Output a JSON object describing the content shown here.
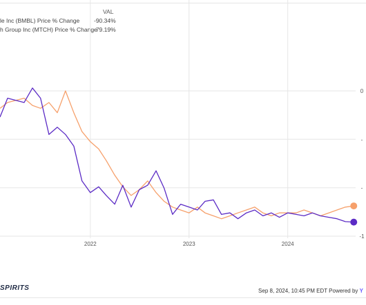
{
  "legend": {
    "header": "VAL",
    "rows": [
      {
        "name": "le Inc (BMBL) Price % Change",
        "value": "-90.34%",
        "color": "#5b2bc5"
      },
      {
        "name": "h Group Inc (MTCH) Price % Change",
        "value": "-79.19%",
        "color": "#f6a06b"
      }
    ]
  },
  "footer": {
    "brand": "SPIRITS",
    "timestamp": "Sep 8, 2024, 10:45 PM EDT Powered by",
    "powered_by_mark": "Y"
  },
  "chart_data": {
    "type": "line",
    "x_ticks": [
      "2022",
      "2023",
      "2024"
    ],
    "y_ticks": [
      "0",
      "-",
      "-",
      "-1"
    ],
    "grid": true,
    "series": [
      {
        "name": "le Inc (BMBL) Price % Change",
        "color": "#5b2bc5",
        "x": [
          "2021-02",
          "2021-03",
          "2021-05",
          "2021-06",
          "2021-07",
          "2021-08",
          "2021-09",
          "2021-10",
          "2021-11",
          "2021-12",
          "2022-01",
          "2022-02",
          "2022-03",
          "2022-04",
          "2022-05",
          "2022-06",
          "2022-07",
          "2022-08",
          "2022-09",
          "2022-10",
          "2022-11",
          "2022-12",
          "2023-01",
          "2023-02",
          "2023-03",
          "2023-04",
          "2023-05",
          "2023-06",
          "2023-07",
          "2023-08",
          "2023-09",
          "2023-10",
          "2023-11",
          "2023-12",
          "2024-01",
          "2024-02",
          "2024-03",
          "2024-04",
          "2024-05",
          "2024-06",
          "2024-07",
          "2024-08",
          "2024-09"
        ],
        "values": [
          -18,
          -5,
          -8,
          2,
          -5,
          -30,
          -25,
          -30,
          -38,
          -62,
          -70,
          -66,
          -72,
          -78,
          -65,
          -80,
          -68,
          -65,
          -55,
          -67,
          -85,
          -78,
          -80,
          -82,
          -76,
          -75,
          -85,
          -84,
          -88,
          -84,
          -82,
          -86,
          -84,
          -87,
          -84,
          -85,
          -86,
          -84,
          -86,
          -87,
          -88,
          -90,
          -90.34
        ]
      },
      {
        "name": "h Group Inc (MTCH) Price % Change",
        "color": "#f6a06b",
        "x": [
          "2021-02",
          "2021-03",
          "2021-05",
          "2021-06",
          "2021-07",
          "2021-08",
          "2021-09",
          "2021-10",
          "2021-11",
          "2021-12",
          "2022-01",
          "2022-02",
          "2022-03",
          "2022-04",
          "2022-05",
          "2022-06",
          "2022-07",
          "2022-08",
          "2022-09",
          "2022-10",
          "2022-11",
          "2022-12",
          "2023-01",
          "2023-02",
          "2023-03",
          "2023-04",
          "2023-05",
          "2023-06",
          "2023-07",
          "2023-08",
          "2023-09",
          "2023-10",
          "2023-11",
          "2023-12",
          "2024-01",
          "2024-02",
          "2024-03",
          "2024-04",
          "2024-05",
          "2024-06",
          "2024-07",
          "2024-08",
          "2024-09"
        ],
        "values": [
          -12,
          -8,
          -5,
          -10,
          -12,
          -8,
          -15,
          0,
          -15,
          -28,
          -35,
          -40,
          -48,
          -58,
          -66,
          -72,
          -68,
          -62,
          -70,
          -76,
          -80,
          -82,
          -84,
          -80,
          -84,
          -86,
          -88,
          -86,
          -84,
          -82,
          -80,
          -84,
          -86,
          -84,
          -84,
          -84,
          -82,
          -84,
          -86,
          -84,
          -82,
          -80,
          -79.19
        ]
      }
    ],
    "end_markers": true
  }
}
